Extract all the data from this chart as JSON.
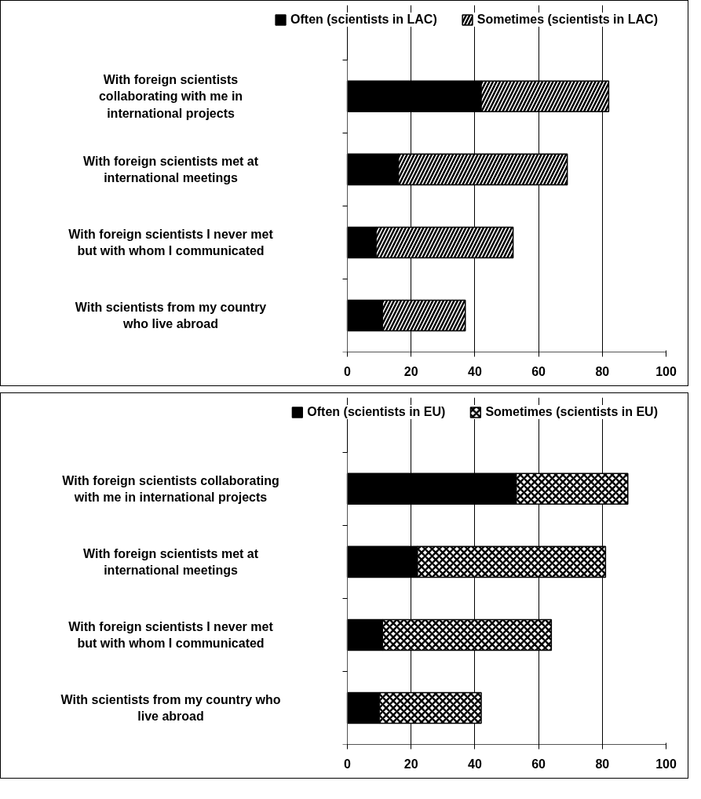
{
  "chart_data": [
    {
      "type": "bar",
      "orientation": "horizontal",
      "stacked": true,
      "categories": [
        "With foreign scientists\ncollaborating with me in\ninternational projects",
        "With foreign scientists met at\ninternational meetings",
        "With foreign scientists I never met\nbut with whom I communicated",
        "With scientists from my country\nwho live abroad"
      ],
      "series": [
        {
          "name": "Often (scientists in LAC)",
          "color": "#000000",
          "values": [
            42,
            16,
            9,
            11
          ]
        },
        {
          "name": "Sometimes (scientists in LAC)",
          "color": "#ffffff",
          "values": [
            40,
            53,
            43,
            26
          ]
        }
      ],
      "xlim": [
        0,
        100
      ],
      "xticks": [
        0,
        20,
        40,
        60,
        80,
        100
      ],
      "grid": "x",
      "legend": "top"
    },
    {
      "type": "bar",
      "orientation": "horizontal",
      "stacked": true,
      "categories": [
        "With foreign scientists collaborating\nwith me in international projects",
        "With foreign scientists met at\ninternational meetings",
        "With foreign scientists I never met\nbut with whom I communicated",
        "With scientists from my country who\nlive abroad"
      ],
      "series": [
        {
          "name": "Often (scientists in EU)",
          "color": "#000000",
          "values": [
            53,
            22,
            11,
            10
          ]
        },
        {
          "name": "Sometimes (scientists in EU)",
          "color": "#ffffff",
          "values": [
            35,
            59,
            53,
            32
          ]
        }
      ],
      "xlim": [
        0,
        100
      ],
      "xticks": [
        0,
        20,
        40,
        60,
        80,
        100
      ],
      "grid": "x",
      "legend": "top"
    }
  ]
}
